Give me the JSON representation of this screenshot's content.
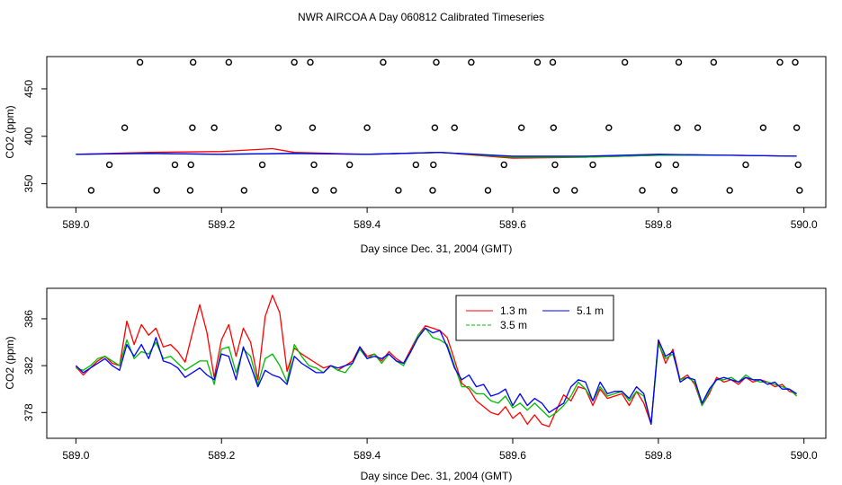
{
  "title": "NWR AIRCOA A  Day 060812  Calibrated Timeseries",
  "chart_data": [
    {
      "type": "scatter+line",
      "xlabel": "Day since Dec. 31, 2004 (GMT)",
      "ylabel": "CO2 (ppm)",
      "xlim": [
        588.96,
        590.03
      ],
      "ylim": [
        325,
        484
      ],
      "x_ticks": [
        "589.0",
        "589.2",
        "589.4",
        "589.6",
        "589.8",
        "590.0"
      ],
      "y_ticks": [
        "350",
        "400",
        "450"
      ],
      "calibration_points": [
        {
          "x": 589.021,
          "y": 343
        },
        {
          "x": 589.046,
          "y": 370
        },
        {
          "x": 589.067,
          "y": 409
        },
        {
          "x": 589.088,
          "y": 478
        },
        {
          "x": 589.111,
          "y": 343
        },
        {
          "x": 589.136,
          "y": 370
        },
        {
          "x": 589.157,
          "y": 343
        },
        {
          "x": 589.158,
          "y": 370
        },
        {
          "x": 589.16,
          "y": 409
        },
        {
          "x": 589.161,
          "y": 478
        },
        {
          "x": 589.19,
          "y": 409
        },
        {
          "x": 589.21,
          "y": 478
        },
        {
          "x": 589.231,
          "y": 343
        },
        {
          "x": 589.256,
          "y": 370
        },
        {
          "x": 589.278,
          "y": 409
        },
        {
          "x": 589.3,
          "y": 478
        },
        {
          "x": 589.322,
          "y": 478
        },
        {
          "x": 589.325,
          "y": 409
        },
        {
          "x": 589.327,
          "y": 370
        },
        {
          "x": 589.329,
          "y": 343
        },
        {
          "x": 589.354,
          "y": 343
        },
        {
          "x": 589.376,
          "y": 370
        },
        {
          "x": 589.4,
          "y": 409
        },
        {
          "x": 589.422,
          "y": 478
        },
        {
          "x": 589.443,
          "y": 343
        },
        {
          "x": 589.467,
          "y": 370
        },
        {
          "x": 589.49,
          "y": 343
        },
        {
          "x": 589.491,
          "y": 370
        },
        {
          "x": 589.493,
          "y": 409
        },
        {
          "x": 589.495,
          "y": 478
        },
        {
          "x": 589.52,
          "y": 409
        },
        {
          "x": 589.543,
          "y": 478
        },
        {
          "x": 589.566,
          "y": 343
        },
        {
          "x": 589.588,
          "y": 370
        },
        {
          "x": 589.612,
          "y": 409
        },
        {
          "x": 589.634,
          "y": 478
        },
        {
          "x": 589.655,
          "y": 478
        },
        {
          "x": 589.656,
          "y": 409
        },
        {
          "x": 589.658,
          "y": 370
        },
        {
          "x": 589.66,
          "y": 343
        },
        {
          "x": 589.685,
          "y": 343
        },
        {
          "x": 589.71,
          "y": 370
        },
        {
          "x": 589.732,
          "y": 409
        },
        {
          "x": 589.754,
          "y": 478
        },
        {
          "x": 589.778,
          "y": 343
        },
        {
          "x": 589.8,
          "y": 370
        },
        {
          "x": 589.822,
          "y": 343
        },
        {
          "x": 589.824,
          "y": 370
        },
        {
          "x": 589.826,
          "y": 409
        },
        {
          "x": 589.828,
          "y": 478
        },
        {
          "x": 589.854,
          "y": 409
        },
        {
          "x": 589.876,
          "y": 478
        },
        {
          "x": 589.898,
          "y": 343
        },
        {
          "x": 589.92,
          "y": 370
        },
        {
          "x": 589.944,
          "y": 409
        },
        {
          "x": 589.967,
          "y": 478
        },
        {
          "x": 589.988,
          "y": 478
        },
        {
          "x": 589.99,
          "y": 409
        },
        {
          "x": 589.992,
          "y": 370
        },
        {
          "x": 589.994,
          "y": 343
        }
      ],
      "series": [
        {
          "name": "1.3 m",
          "color": "#ff0000",
          "x": [
            589.0,
            589.1,
            589.2,
            589.27,
            589.3,
            589.4,
            589.5,
            589.6,
            589.7,
            589.8,
            589.9,
            589.99
          ],
          "y": [
            381,
            383,
            384,
            387,
            383,
            381,
            383,
            377,
            378,
            380,
            380,
            379
          ]
        },
        {
          "name": "3.5 m",
          "color": "#00bb00",
          "x": [
            589.0,
            589.1,
            589.2,
            589.3,
            589.4,
            589.5,
            589.6,
            589.7,
            589.8,
            589.9,
            589.99
          ],
          "y": [
            381,
            382,
            381,
            382,
            381,
            383,
            378,
            378,
            380,
            380,
            379
          ]
        },
        {
          "name": "5.1 m",
          "color": "#0000ff",
          "x": [
            589.0,
            589.1,
            589.2,
            589.3,
            589.4,
            589.5,
            589.6,
            589.7,
            589.8,
            589.9,
            589.99
          ],
          "y": [
            381,
            382,
            381,
            382,
            381,
            383,
            379,
            379,
            381,
            380,
            379
          ]
        }
      ]
    },
    {
      "type": "line",
      "xlabel": "Day since Dec. 31, 2004 (GMT)",
      "ylabel": "CO2 (ppm)",
      "xlim": [
        588.96,
        590.03
      ],
      "ylim": [
        375.8,
        388.6
      ],
      "x_ticks": [
        "589.0",
        "589.2",
        "589.4",
        "589.6",
        "589.8",
        "590.0"
      ],
      "y_ticks": [
        "378",
        "382",
        "386"
      ],
      "legend": {
        "placement": "top-right-inside"
      },
      "series": [
        {
          "name": "1.3 m",
          "color": "#ff0000",
          "x": [
            589.0,
            589.01,
            589.02,
            589.03,
            589.04,
            589.05,
            589.06,
            589.07,
            589.08,
            589.09,
            589.1,
            589.11,
            589.12,
            589.13,
            589.14,
            589.15,
            589.16,
            589.17,
            589.18,
            589.19,
            589.2,
            589.21,
            589.22,
            589.23,
            589.24,
            589.25,
            589.26,
            589.27,
            589.28,
            589.29,
            589.3,
            589.31,
            589.32,
            589.33,
            589.34,
            589.35,
            589.36,
            589.37,
            589.38,
            589.39,
            589.4,
            589.41,
            589.42,
            589.43,
            589.44,
            589.45,
            589.46,
            589.47,
            589.48,
            589.49,
            589.5,
            589.51,
            589.52,
            589.53,
            589.54,
            589.55,
            589.56,
            589.57,
            589.58,
            589.59,
            589.6,
            589.61,
            589.62,
            589.63,
            589.64,
            589.65,
            589.66,
            589.67,
            589.68,
            589.69,
            589.7,
            589.71,
            589.72,
            589.73,
            589.74,
            589.75,
            589.76,
            589.77,
            589.78,
            589.79,
            589.8,
            589.81,
            589.82,
            589.83,
            589.84,
            589.85,
            589.86,
            589.87,
            589.88,
            589.89,
            589.9,
            589.91,
            589.92,
            589.93,
            589.94,
            589.95,
            589.96,
            589.97,
            589.98,
            589.99
          ],
          "y": [
            381.9,
            381.2,
            381.8,
            382.4,
            382.8,
            382.2,
            382.0,
            385.8,
            383.8,
            385.5,
            384.6,
            385.2,
            383.6,
            383.8,
            383.2,
            382.3,
            384.8,
            387.2,
            384.8,
            381.0,
            384.2,
            385.5,
            382.8,
            385.2,
            384.0,
            380.8,
            386.2,
            388.0,
            386.5,
            381.5,
            383.5,
            383.0,
            382.6,
            382.2,
            381.8,
            382.0,
            381.6,
            382.0,
            382.4,
            383.6,
            382.8,
            383.0,
            382.4,
            383.2,
            382.6,
            382.2,
            383.4,
            384.6,
            385.4,
            385.2,
            385.0,
            384.4,
            382.5,
            380.5,
            380.0,
            379.0,
            378.5,
            378.0,
            377.8,
            378.5,
            377.5,
            378.0,
            377.0,
            377.8,
            377.0,
            376.8,
            378.2,
            379.5,
            379.0,
            380.2,
            380.0,
            378.6,
            380.0,
            379.2,
            379.4,
            379.6,
            378.6,
            379.8,
            378.8,
            377.0,
            384.0,
            382.2,
            383.4,
            380.8,
            381.2,
            380.4,
            378.6,
            379.6,
            381.0,
            380.6,
            380.8,
            380.4,
            381.0,
            380.6,
            380.8,
            380.6,
            380.2,
            380.4,
            379.8,
            379.6
          ]
        },
        {
          "name": "3.5 m",
          "color": "#00bb00",
          "x": [
            589.0,
            589.01,
            589.02,
            589.03,
            589.04,
            589.05,
            589.06,
            589.07,
            589.08,
            589.09,
            589.1,
            589.11,
            589.12,
            589.13,
            589.14,
            589.15,
            589.16,
            589.17,
            589.18,
            589.19,
            589.2,
            589.21,
            589.22,
            589.23,
            589.24,
            589.25,
            589.26,
            589.27,
            589.28,
            589.29,
            589.3,
            589.31,
            589.32,
            589.33,
            589.34,
            589.35,
            589.36,
            589.37,
            589.38,
            589.39,
            589.4,
            589.41,
            589.42,
            589.43,
            589.44,
            589.45,
            589.46,
            589.47,
            589.48,
            589.49,
            589.5,
            589.51,
            589.52,
            589.53,
            589.54,
            589.55,
            589.56,
            589.57,
            589.58,
            589.59,
            589.6,
            589.61,
            589.62,
            589.63,
            589.64,
            589.65,
            589.66,
            589.67,
            589.68,
            589.69,
            589.7,
            589.71,
            589.72,
            589.73,
            589.74,
            589.75,
            589.76,
            589.77,
            589.78,
            589.79,
            589.8,
            589.81,
            589.82,
            589.83,
            589.84,
            589.85,
            589.86,
            589.87,
            589.88,
            589.89,
            589.9,
            589.91,
            589.92,
            589.93,
            589.94,
            589.95,
            589.96,
            589.97,
            589.98,
            589.99
          ],
          "y": [
            381.8,
            381.6,
            382.0,
            382.6,
            382.8,
            382.4,
            382.0,
            384.2,
            382.6,
            383.2,
            383.0,
            384.0,
            382.6,
            382.8,
            382.2,
            381.6,
            382.0,
            382.4,
            382.4,
            380.4,
            383.4,
            383.6,
            381.4,
            383.4,
            382.8,
            380.4,
            382.6,
            383.0,
            382.0,
            380.6,
            383.8,
            382.8,
            382.0,
            381.8,
            381.4,
            382.0,
            381.6,
            381.4,
            382.2,
            383.4,
            382.6,
            383.0,
            382.2,
            383.0,
            382.4,
            382.0,
            383.2,
            384.6,
            385.2,
            384.4,
            384.2,
            383.8,
            382.0,
            380.2,
            380.2,
            379.6,
            379.6,
            379.0,
            378.8,
            379.4,
            378.4,
            378.8,
            378.2,
            378.8,
            378.2,
            377.6,
            378.0,
            378.6,
            379.4,
            380.6,
            380.0,
            379.0,
            380.2,
            379.4,
            379.6,
            379.8,
            379.0,
            379.8,
            379.4,
            377.0,
            383.8,
            382.6,
            383.0,
            380.8,
            381.0,
            380.6,
            378.6,
            379.8,
            380.8,
            380.8,
            381.0,
            380.6,
            381.2,
            380.8,
            380.6,
            380.6,
            380.4,
            380.2,
            380.0,
            379.4
          ]
        },
        {
          "name": "5.1 m",
          "color": "#0000ff",
          "x": [
            589.0,
            589.01,
            589.02,
            589.03,
            589.04,
            589.05,
            589.06,
            589.07,
            589.08,
            589.09,
            589.1,
            589.11,
            589.12,
            589.13,
            589.14,
            589.15,
            589.16,
            589.17,
            589.18,
            589.19,
            589.2,
            589.21,
            589.22,
            589.23,
            589.24,
            589.25,
            589.26,
            589.27,
            589.28,
            589.29,
            589.3,
            589.31,
            589.32,
            589.33,
            589.34,
            589.35,
            589.36,
            589.37,
            589.38,
            589.39,
            589.4,
            589.41,
            589.42,
            589.43,
            589.44,
            589.45,
            589.46,
            589.47,
            589.48,
            589.49,
            589.5,
            589.51,
            589.52,
            589.53,
            589.54,
            589.55,
            589.56,
            589.57,
            589.58,
            589.59,
            589.6,
            589.61,
            589.62,
            589.63,
            589.64,
            589.65,
            589.66,
            589.67,
            589.68,
            589.69,
            589.7,
            589.71,
            589.72,
            589.73,
            589.74,
            589.75,
            589.76,
            589.77,
            589.78,
            589.79,
            589.8,
            589.81,
            589.82,
            589.83,
            589.84,
            589.85,
            589.86,
            589.87,
            589.88,
            589.89,
            589.9,
            589.91,
            589.92,
            589.93,
            589.94,
            589.95,
            589.96,
            589.97,
            589.98,
            589.99
          ],
          "y": [
            382.0,
            381.4,
            381.8,
            382.2,
            382.6,
            382.0,
            381.6,
            383.8,
            382.8,
            383.8,
            382.6,
            384.4,
            382.4,
            382.2,
            381.8,
            381.0,
            381.4,
            381.8,
            381.2,
            380.8,
            383.0,
            382.8,
            380.8,
            383.6,
            382.0,
            380.2,
            381.6,
            381.2,
            381.0,
            380.4,
            382.8,
            382.2,
            381.8,
            381.4,
            381.4,
            382.0,
            381.8,
            382.0,
            382.2,
            383.6,
            382.6,
            382.8,
            382.6,
            383.0,
            382.4,
            382.2,
            383.2,
            384.4,
            385.2,
            384.8,
            385.0,
            383.6,
            381.8,
            380.8,
            381.2,
            380.2,
            380.4,
            379.4,
            379.6,
            380.0,
            378.6,
            379.6,
            378.6,
            379.2,
            378.8,
            378.0,
            378.4,
            378.8,
            380.2,
            380.8,
            380.6,
            379.0,
            380.6,
            379.6,
            379.8,
            379.8,
            379.2,
            380.2,
            379.6,
            377.0,
            384.2,
            382.8,
            383.2,
            380.6,
            381.0,
            380.8,
            378.8,
            380.0,
            380.8,
            381.0,
            380.8,
            380.6,
            381.0,
            380.8,
            380.8,
            380.4,
            380.6,
            380.0,
            380.0,
            379.6
          ]
        }
      ]
    }
  ]
}
